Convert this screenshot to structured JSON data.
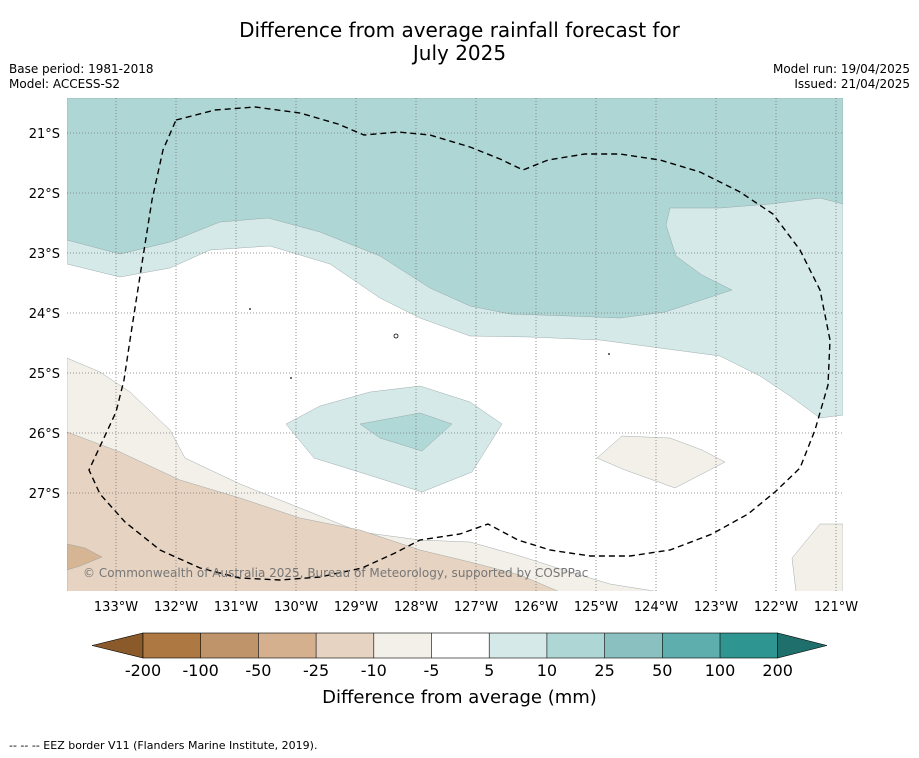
{
  "title": {
    "line1": "Difference from average rainfall forecast for",
    "line2": "July 2025"
  },
  "meta": {
    "base_period": "Base period: 1981-2018",
    "model": "Model: ACCESS-S2",
    "model_run": "Model run: 19/04/2025",
    "issued": "Issued: 21/04/2025"
  },
  "map": {
    "lat_labels": [
      "21°S",
      "22°S",
      "23°S",
      "24°S",
      "25°S",
      "26°S",
      "27°S"
    ],
    "lon_labels": [
      "133°W",
      "132°W",
      "131°W",
      "130°W",
      "129°W",
      "128°W",
      "127°W",
      "126°W",
      "125°W",
      "124°W",
      "123°W",
      "122°W",
      "121°W"
    ],
    "copyright": "© Commonwealth of Australia 2025, Bureau of Meteorology, supported by COSPPac",
    "layer_colors": {
      "wet_10_25": "#aed6d5",
      "wet_25_50": "#b0d8d6",
      "wet_5_10": "#d4e9e8",
      "dry_minus10_minus5": "#f3efe9",
      "dry_minus25_minus10": "#e6d3c1",
      "dry_minus50_minus25": "#d6b595"
    }
  },
  "colorbar": {
    "tick_labels": [
      "-200",
      "-100",
      "-50",
      "-25",
      "-10",
      "-5",
      "5",
      "10",
      "25",
      "50",
      "100",
      "200"
    ],
    "colors": [
      "#ae7843",
      "#c0946a",
      "#d4b08e",
      "#e6d3c1",
      "#f3efe9",
      "#ffffff",
      "#d4e9e8",
      "#aed6d5",
      "#8bc0c0",
      "#5eaeae",
      "#2f9590"
    ],
    "extend_low_color": "#8b5a2b",
    "extend_high_color": "#1f6f6c",
    "label": "Difference from average (mm)"
  },
  "footer": "-- -- -- EEZ border V11 (Flanders Marine Institute, 2019)."
}
